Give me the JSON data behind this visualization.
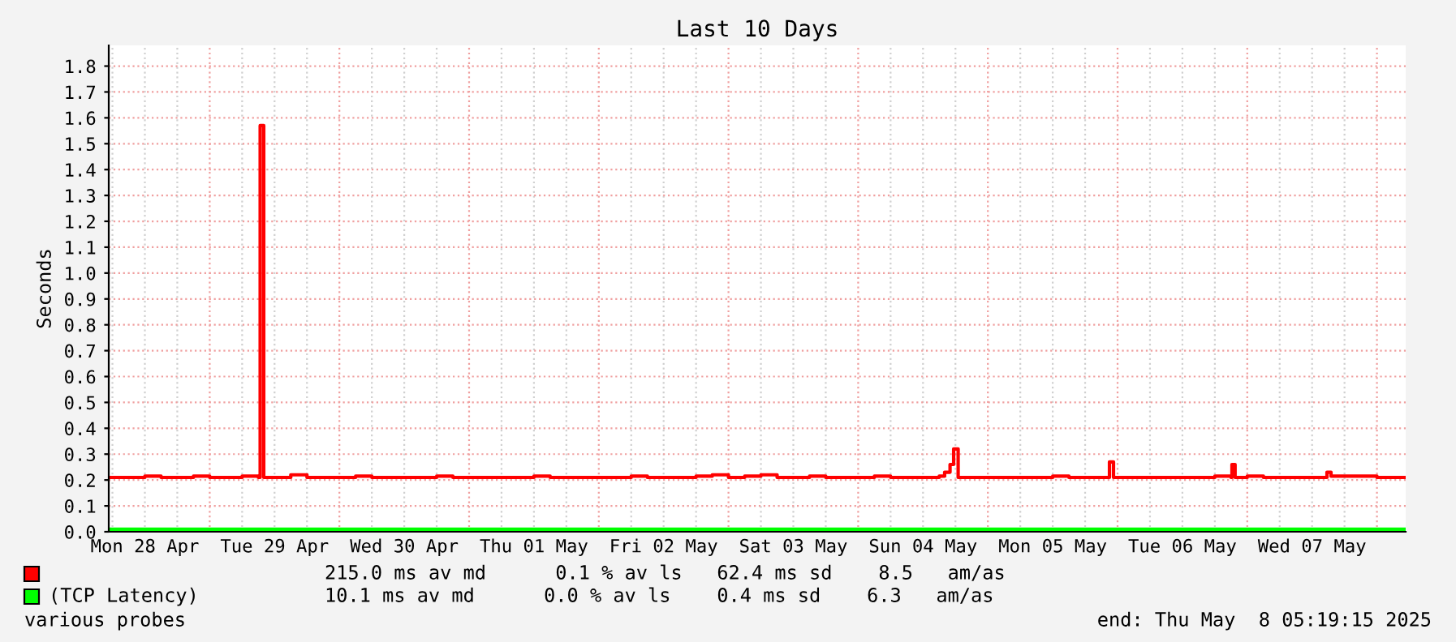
{
  "chart_data": {
    "type": "step",
    "title": "Last 10 Days",
    "ylabel": "Seconds",
    "legend": "bottom",
    "grid": true,
    "marker": "none",
    "line_style": "solid",
    "xlim": [
      "2025-04-28T05:19",
      "2025-05-08T05:19"
    ],
    "ylim": [
      0,
      1.88
    ],
    "yticks": [
      {
        "value": 0,
        "label": "0.0"
      },
      {
        "value": 0.1,
        "label": "0.1"
      },
      {
        "value": 0.2,
        "label": "0.2"
      },
      {
        "value": 0.3,
        "label": "0.3"
      },
      {
        "value": 0.4,
        "label": "0.4"
      },
      {
        "value": 0.5,
        "label": "0.5"
      },
      {
        "value": 0.6,
        "label": "0.6"
      },
      {
        "value": 0.7,
        "label": "0.7"
      },
      {
        "value": 0.8,
        "label": "0.8"
      },
      {
        "value": 0.9,
        "label": "0.9"
      },
      {
        "value": 1.0,
        "label": "1.0"
      },
      {
        "value": 1.1,
        "label": "1.1"
      },
      {
        "value": 1.2,
        "label": "1.2"
      },
      {
        "value": 1.3,
        "label": "1.3"
      },
      {
        "value": 1.4,
        "label": "1.4"
      },
      {
        "value": 1.5,
        "label": "1.5"
      },
      {
        "value": 1.6,
        "label": "1.6"
      },
      {
        "value": 1.7,
        "label": "1.7"
      },
      {
        "value": 1.8,
        "label": "1.8"
      }
    ],
    "xticks": [
      {
        "value": "2025-04-28T06:00",
        "label": null
      },
      {
        "value": "2025-04-28T12:00",
        "label": "Mon 28 Apr"
      },
      {
        "value": "2025-04-28T18:00",
        "label": null
      },
      {
        "value": "2025-04-29T00:00",
        "label": null
      },
      {
        "value": "2025-04-29T06:00",
        "label": null
      },
      {
        "value": "2025-04-29T12:00",
        "label": "Tue 29 Apr"
      },
      {
        "value": "2025-04-29T18:00",
        "label": null
      },
      {
        "value": "2025-04-30T00:00",
        "label": null
      },
      {
        "value": "2025-04-30T06:00",
        "label": null
      },
      {
        "value": "2025-04-30T12:00",
        "label": "Wed 30 Apr"
      },
      {
        "value": "2025-04-30T18:00",
        "label": null
      },
      {
        "value": "2025-05-01T00:00",
        "label": null
      },
      {
        "value": "2025-05-01T06:00",
        "label": null
      },
      {
        "value": "2025-05-01T12:00",
        "label": "Thu 01 May"
      },
      {
        "value": "2025-05-01T18:00",
        "label": null
      },
      {
        "value": "2025-05-02T00:00",
        "label": null
      },
      {
        "value": "2025-05-02T06:00",
        "label": null
      },
      {
        "value": "2025-05-02T12:00",
        "label": "Fri 02 May"
      },
      {
        "value": "2025-05-02T18:00",
        "label": null
      },
      {
        "value": "2025-05-03T00:00",
        "label": null
      },
      {
        "value": "2025-05-03T06:00",
        "label": null
      },
      {
        "value": "2025-05-03T12:00",
        "label": "Sat 03 May"
      },
      {
        "value": "2025-05-03T18:00",
        "label": null
      },
      {
        "value": "2025-05-04T00:00",
        "label": null
      },
      {
        "value": "2025-05-04T06:00",
        "label": null
      },
      {
        "value": "2025-05-04T12:00",
        "label": "Sun 04 May"
      },
      {
        "value": "2025-05-04T18:00",
        "label": null
      },
      {
        "value": "2025-05-05T00:00",
        "label": null
      },
      {
        "value": "2025-05-05T06:00",
        "label": null
      },
      {
        "value": "2025-05-05T12:00",
        "label": "Mon 05 May"
      },
      {
        "value": "2025-05-05T18:00",
        "label": null
      },
      {
        "value": "2025-05-06T00:00",
        "label": null
      },
      {
        "value": "2025-05-06T06:00",
        "label": null
      },
      {
        "value": "2025-05-06T12:00",
        "label": "Tue 06 May"
      },
      {
        "value": "2025-05-06T18:00",
        "label": null
      },
      {
        "value": "2025-05-07T00:00",
        "label": null
      },
      {
        "value": "2025-05-07T06:00",
        "label": null
      },
      {
        "value": "2025-05-07T12:00",
        "label": "Wed 07 May"
      },
      {
        "value": "2025-05-07T18:00",
        "label": null
      },
      {
        "value": "2025-05-08T00:00",
        "label": null
      }
    ],
    "series": [
      {
        "color": "#ff0000",
        "x": [
          "2025-04-28T05:19",
          "2025-04-28T09:00",
          "2025-04-28T12:00",
          "2025-04-28T15:00",
          "2025-04-28T18:00",
          "2025-04-28T21:00",
          "2025-04-29T00:00",
          "2025-04-29T03:00",
          "2025-04-29T06:00",
          "2025-04-29T09:00",
          "2025-04-29T09:20",
          "2025-04-29T10:00",
          "2025-04-29T12:00",
          "2025-04-29T15:00",
          "2025-04-29T18:00",
          "2025-04-29T21:00",
          "2025-04-30T00:00",
          "2025-04-30T03:00",
          "2025-04-30T06:00",
          "2025-04-30T09:00",
          "2025-04-30T12:00",
          "2025-04-30T15:00",
          "2025-04-30T18:00",
          "2025-04-30T21:00",
          "2025-05-01T00:00",
          "2025-05-01T03:00",
          "2025-05-01T06:00",
          "2025-05-01T09:00",
          "2025-05-01T12:00",
          "2025-05-01T15:00",
          "2025-05-01T18:00",
          "2025-05-01T21:00",
          "2025-05-02T00:00",
          "2025-05-02T03:00",
          "2025-05-02T06:00",
          "2025-05-02T09:00",
          "2025-05-02T12:00",
          "2025-05-02T15:00",
          "2025-05-02T18:00",
          "2025-05-02T21:00",
          "2025-05-03T00:00",
          "2025-05-03T03:00",
          "2025-05-03T06:00",
          "2025-05-03T09:00",
          "2025-05-03T12:00",
          "2025-05-03T15:00",
          "2025-05-03T18:00",
          "2025-05-03T21:00",
          "2025-05-04T00:00",
          "2025-05-04T03:00",
          "2025-05-04T06:00",
          "2025-05-04T09:00",
          "2025-05-04T12:00",
          "2025-05-04T15:00",
          "2025-05-04T16:00",
          "2025-05-04T17:00",
          "2025-05-04T17:40",
          "2025-05-04T18:30",
          "2025-05-04T21:00",
          "2025-05-05T00:00",
          "2025-05-05T03:00",
          "2025-05-05T06:00",
          "2025-05-05T09:00",
          "2025-05-05T12:00",
          "2025-05-05T15:00",
          "2025-05-05T18:00",
          "2025-05-05T21:00",
          "2025-05-05T22:30",
          "2025-05-05T23:15",
          "2025-05-06T03:00",
          "2025-05-06T06:00",
          "2025-05-06T09:00",
          "2025-05-06T12:00",
          "2025-05-06T15:00",
          "2025-05-06T18:00",
          "2025-05-06T21:00",
          "2025-05-06T21:10",
          "2025-05-06T21:45",
          "2025-05-07T00:00",
          "2025-05-07T03:00",
          "2025-05-07T06:00",
          "2025-05-07T09:00",
          "2025-05-07T12:00",
          "2025-05-07T14:45",
          "2025-05-07T15:30",
          "2025-05-07T18:00",
          "2025-05-07T21:00",
          "2025-05-08T00:00",
          "2025-05-08T03:00",
          "2025-05-08T05:19"
        ],
        "values": [
          0.21,
          0.21,
          0.215,
          0.21,
          0.21,
          0.215,
          0.21,
          0.21,
          0.215,
          0.21,
          1.57,
          0.21,
          0.21,
          0.22,
          0.21,
          0.21,
          0.21,
          0.215,
          0.21,
          0.21,
          0.21,
          0.21,
          0.215,
          0.21,
          0.21,
          0.21,
          0.21,
          0.21,
          0.215,
          0.21,
          0.21,
          0.21,
          0.21,
          0.21,
          0.215,
          0.21,
          0.21,
          0.21,
          0.215,
          0.22,
          0.21,
          0.215,
          0.22,
          0.21,
          0.21,
          0.215,
          0.21,
          0.21,
          0.21,
          0.215,
          0.21,
          0.21,
          0.21,
          0.215,
          0.23,
          0.26,
          0.32,
          0.21,
          0.21,
          0.21,
          0.21,
          0.21,
          0.21,
          0.215,
          0.21,
          0.21,
          0.21,
          0.27,
          0.21,
          0.21,
          0.21,
          0.21,
          0.21,
          0.21,
          0.215,
          0.21,
          0.26,
          0.21,
          0.215,
          0.21,
          0.21,
          0.21,
          0.21,
          0.23,
          0.215,
          0.215,
          0.215,
          0.21,
          0.21,
          0.21
        ]
      },
      {
        "name": "(TCP Latency)",
        "color": "#00ff00",
        "x": [
          "2025-04-28T05:19",
          "2025-05-08T05:19"
        ],
        "values": [
          0.01,
          0.01
        ]
      }
    ],
    "annotations": [
      "215.0 ms av md      0.1 % av ls   62.4 ms sd    8.5   am/as",
      "10.1 ms av md      0.0 % av ls    0.4 ms sd    6.3   am/as",
      "various probes",
      "end: Thu May  8 05:19:15 2025"
    ]
  }
}
